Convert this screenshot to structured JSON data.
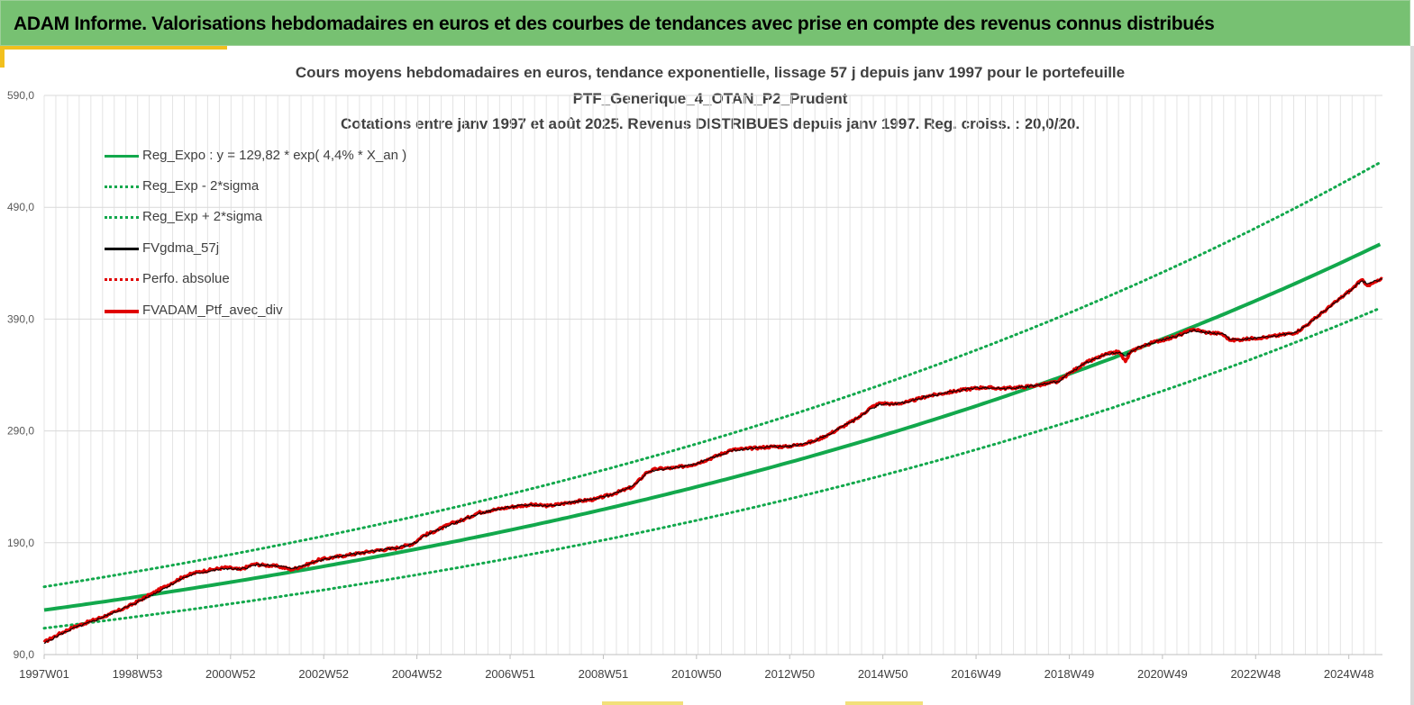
{
  "banner": {
    "title": "ADAM Informe. Valorisations hebdomadaires en euros et des courbes de tendances avec prise en compte des revenus connus distribués"
  },
  "colors": {
    "banner_bg": "#77c172",
    "reg_expo": "#12a84c",
    "fvgdma": "#000000",
    "perf_abs": "#e00000",
    "fvadam": "#e00000",
    "accent": "#f2c01e"
  },
  "chart_data": {
    "type": "line",
    "title_lines": [
      "Cours moyens hebdomadaires  en euros, tendance exponentielle, lissage 57 j depuis janv 1997 pour le portefeuille",
      "PTF_Generique_4_OTAN_P2_Prudent",
      "Cotations  entre janv 1997 et août  2025. Revenus DISTRIBUES depuis janv 1997. Reg. croiss. : 20,0/20."
    ],
    "xlabel": "",
    "ylabel": "",
    "x_tick_labels": [
      "1997W01",
      "1998W53",
      "2000W52",
      "2002W52",
      "2004W52",
      "2006W51",
      "2008W51",
      "2010W50",
      "2012W50",
      "2014W50",
      "2016W49",
      "2018W49",
      "2020W49",
      "2022W48",
      "2024W48"
    ],
    "x_range_years": [
      1997.0,
      2025.65
    ],
    "y_ticks": [
      "90,0",
      "190,0",
      "290,0",
      "390,0",
      "490,0",
      "590,0"
    ],
    "ylim": [
      90,
      590
    ],
    "grid": true,
    "legend_position": "top-left",
    "legend": [
      {
        "label": "Reg_Expo : y = 129,82 * exp( 4,4% *  X_an )",
        "style": "solid",
        "color": "#12a84c",
        "width": 3
      },
      {
        "label": "Reg_Exp - 2*sigma",
        "style": "dotted",
        "color": "#12a84c",
        "width": 3
      },
      {
        "label": "Reg_Exp + 2*sigma",
        "style": "dotted",
        "color": "#12a84c",
        "width": 3
      },
      {
        "label": "FVgdma_57j",
        "style": "solid",
        "color": "#000000",
        "width": 3
      },
      {
        "label": "Perfo. absolue",
        "style": "dotted",
        "color": "#e00000",
        "width": 3
      },
      {
        "label": "FVADAM_Ptf_avec_div",
        "style": "solid",
        "color": "#e00000",
        "width": 4
      }
    ],
    "trend": {
      "a": 129.82,
      "rate": 0.044,
      "lower_factor": 0.875,
      "upper_factor": 1.16
    },
    "series": [
      {
        "name": "FVADAM_Ptf_avec_div",
        "x_years": [
          1997.0,
          1997.3,
          1997.6,
          1998.0,
          1998.4,
          1998.8,
          1999.2,
          1999.6,
          2000.0,
          2000.3,
          2000.6,
          2000.9,
          2001.2,
          2001.5,
          2001.7,
          2002.0,
          2002.3,
          2002.6,
          2002.9,
          2003.2,
          2003.5,
          2003.8,
          2004.1,
          2004.5,
          2004.9,
          2005.1,
          2005.4,
          2005.7,
          2006.0,
          2006.3,
          2006.7,
          2007.0,
          2007.4,
          2007.8,
          2008.1,
          2008.4,
          2008.8,
          2009.2,
          2009.6,
          2009.9,
          2010.1,
          2010.5,
          2010.9,
          2011.3,
          2011.7,
          2012.0,
          2012.3,
          2012.6,
          2012.9,
          2013.2,
          2013.5,
          2013.8,
          2014.1,
          2014.4,
          2014.7,
          2014.9,
          2015.2,
          2015.5,
          2015.9,
          2016.3,
          2016.7,
          2017.1,
          2017.5,
          2017.9,
          2018.3,
          2018.7,
          2019.0,
          2019.3,
          2019.7,
          2020.0,
          2020.15,
          2020.25,
          2020.4,
          2020.8,
          2021.2,
          2021.6,
          2021.9,
          2022.2,
          2022.4,
          2022.7,
          2022.9,
          2023.2,
          2023.5,
          2023.8,
          2024.1,
          2024.4,
          2024.7,
          2025.0,
          2025.2,
          2025.35,
          2025.65
        ],
        "values": [
          101,
          108,
          114,
          120,
          126,
          133,
          142,
          151,
          160,
          164,
          166,
          168,
          166,
          171,
          170,
          169,
          166,
          170,
          175,
          177,
          179,
          181,
          183,
          185,
          189,
          196,
          201,
          207,
          211,
          217,
          220,
          222,
          224,
          223,
          225,
          227,
          229,
          234,
          240,
          253,
          256,
          257,
          260,
          266,
          273,
          274,
          275,
          276,
          276,
          278,
          281,
          287,
          294,
          301,
          311,
          315,
          314,
          316,
          321,
          324,
          327,
          329,
          328,
          329,
          331,
          334,
          343,
          351,
          358,
          361,
          352,
          360,
          364,
          370,
          374,
          381,
          378,
          377,
          371,
          372,
          373,
          374,
          376,
          378,
          387,
          397,
          407,
          417,
          425,
          420,
          426
        ]
      },
      {
        "name": "FVgdma_57j",
        "x_years": [
          1997.0,
          1997.3,
          1997.6,
          1998.0,
          1998.4,
          1998.8,
          1999.2,
          1999.6,
          2000.0,
          2000.3,
          2000.6,
          2000.9,
          2001.2,
          2001.5,
          2001.7,
          2002.0,
          2002.3,
          2002.6,
          2002.9,
          2003.2,
          2003.5,
          2003.8,
          2004.1,
          2004.5,
          2004.9,
          2005.1,
          2005.4,
          2005.7,
          2006.0,
          2006.3,
          2006.7,
          2007.0,
          2007.4,
          2007.8,
          2008.1,
          2008.4,
          2008.8,
          2009.2,
          2009.6,
          2009.9,
          2010.1,
          2010.5,
          2010.9,
          2011.3,
          2011.7,
          2012.0,
          2012.3,
          2012.6,
          2012.9,
          2013.2,
          2013.5,
          2013.8,
          2014.1,
          2014.4,
          2014.7,
          2014.9,
          2015.2,
          2015.5,
          2015.9,
          2016.3,
          2016.7,
          2017.1,
          2017.5,
          2017.9,
          2018.3,
          2018.7,
          2019.0,
          2019.3,
          2019.7,
          2020.0,
          2020.15,
          2020.25,
          2020.4,
          2020.8,
          2021.2,
          2021.6,
          2021.9,
          2022.2,
          2022.4,
          2022.7,
          2022.9,
          2023.2,
          2023.5,
          2023.8,
          2024.1,
          2024.4,
          2024.7,
          2025.0,
          2025.2,
          2025.35,
          2025.65
        ],
        "values": [
          100,
          107,
          113,
          119,
          126,
          133,
          141,
          150,
          159,
          163,
          165,
          167,
          166,
          170,
          170,
          169,
          167,
          170,
          174,
          177,
          179,
          181,
          183,
          185,
          189,
          195,
          201,
          206,
          211,
          216,
          220,
          222,
          224,
          223,
          225,
          227,
          229,
          234,
          241,
          252,
          255,
          257,
          260,
          266,
          272,
          274,
          275,
          276,
          276,
          278,
          281,
          287,
          294,
          301,
          310,
          314,
          314,
          316,
          321,
          324,
          327,
          329,
          328,
          329,
          331,
          334,
          343,
          351,
          358,
          360,
          357,
          360,
          364,
          370,
          374,
          380,
          378,
          377,
          372,
          372,
          373,
          374,
          376,
          378,
          387,
          397,
          407,
          417,
          424,
          422,
          426
        ]
      }
    ]
  }
}
